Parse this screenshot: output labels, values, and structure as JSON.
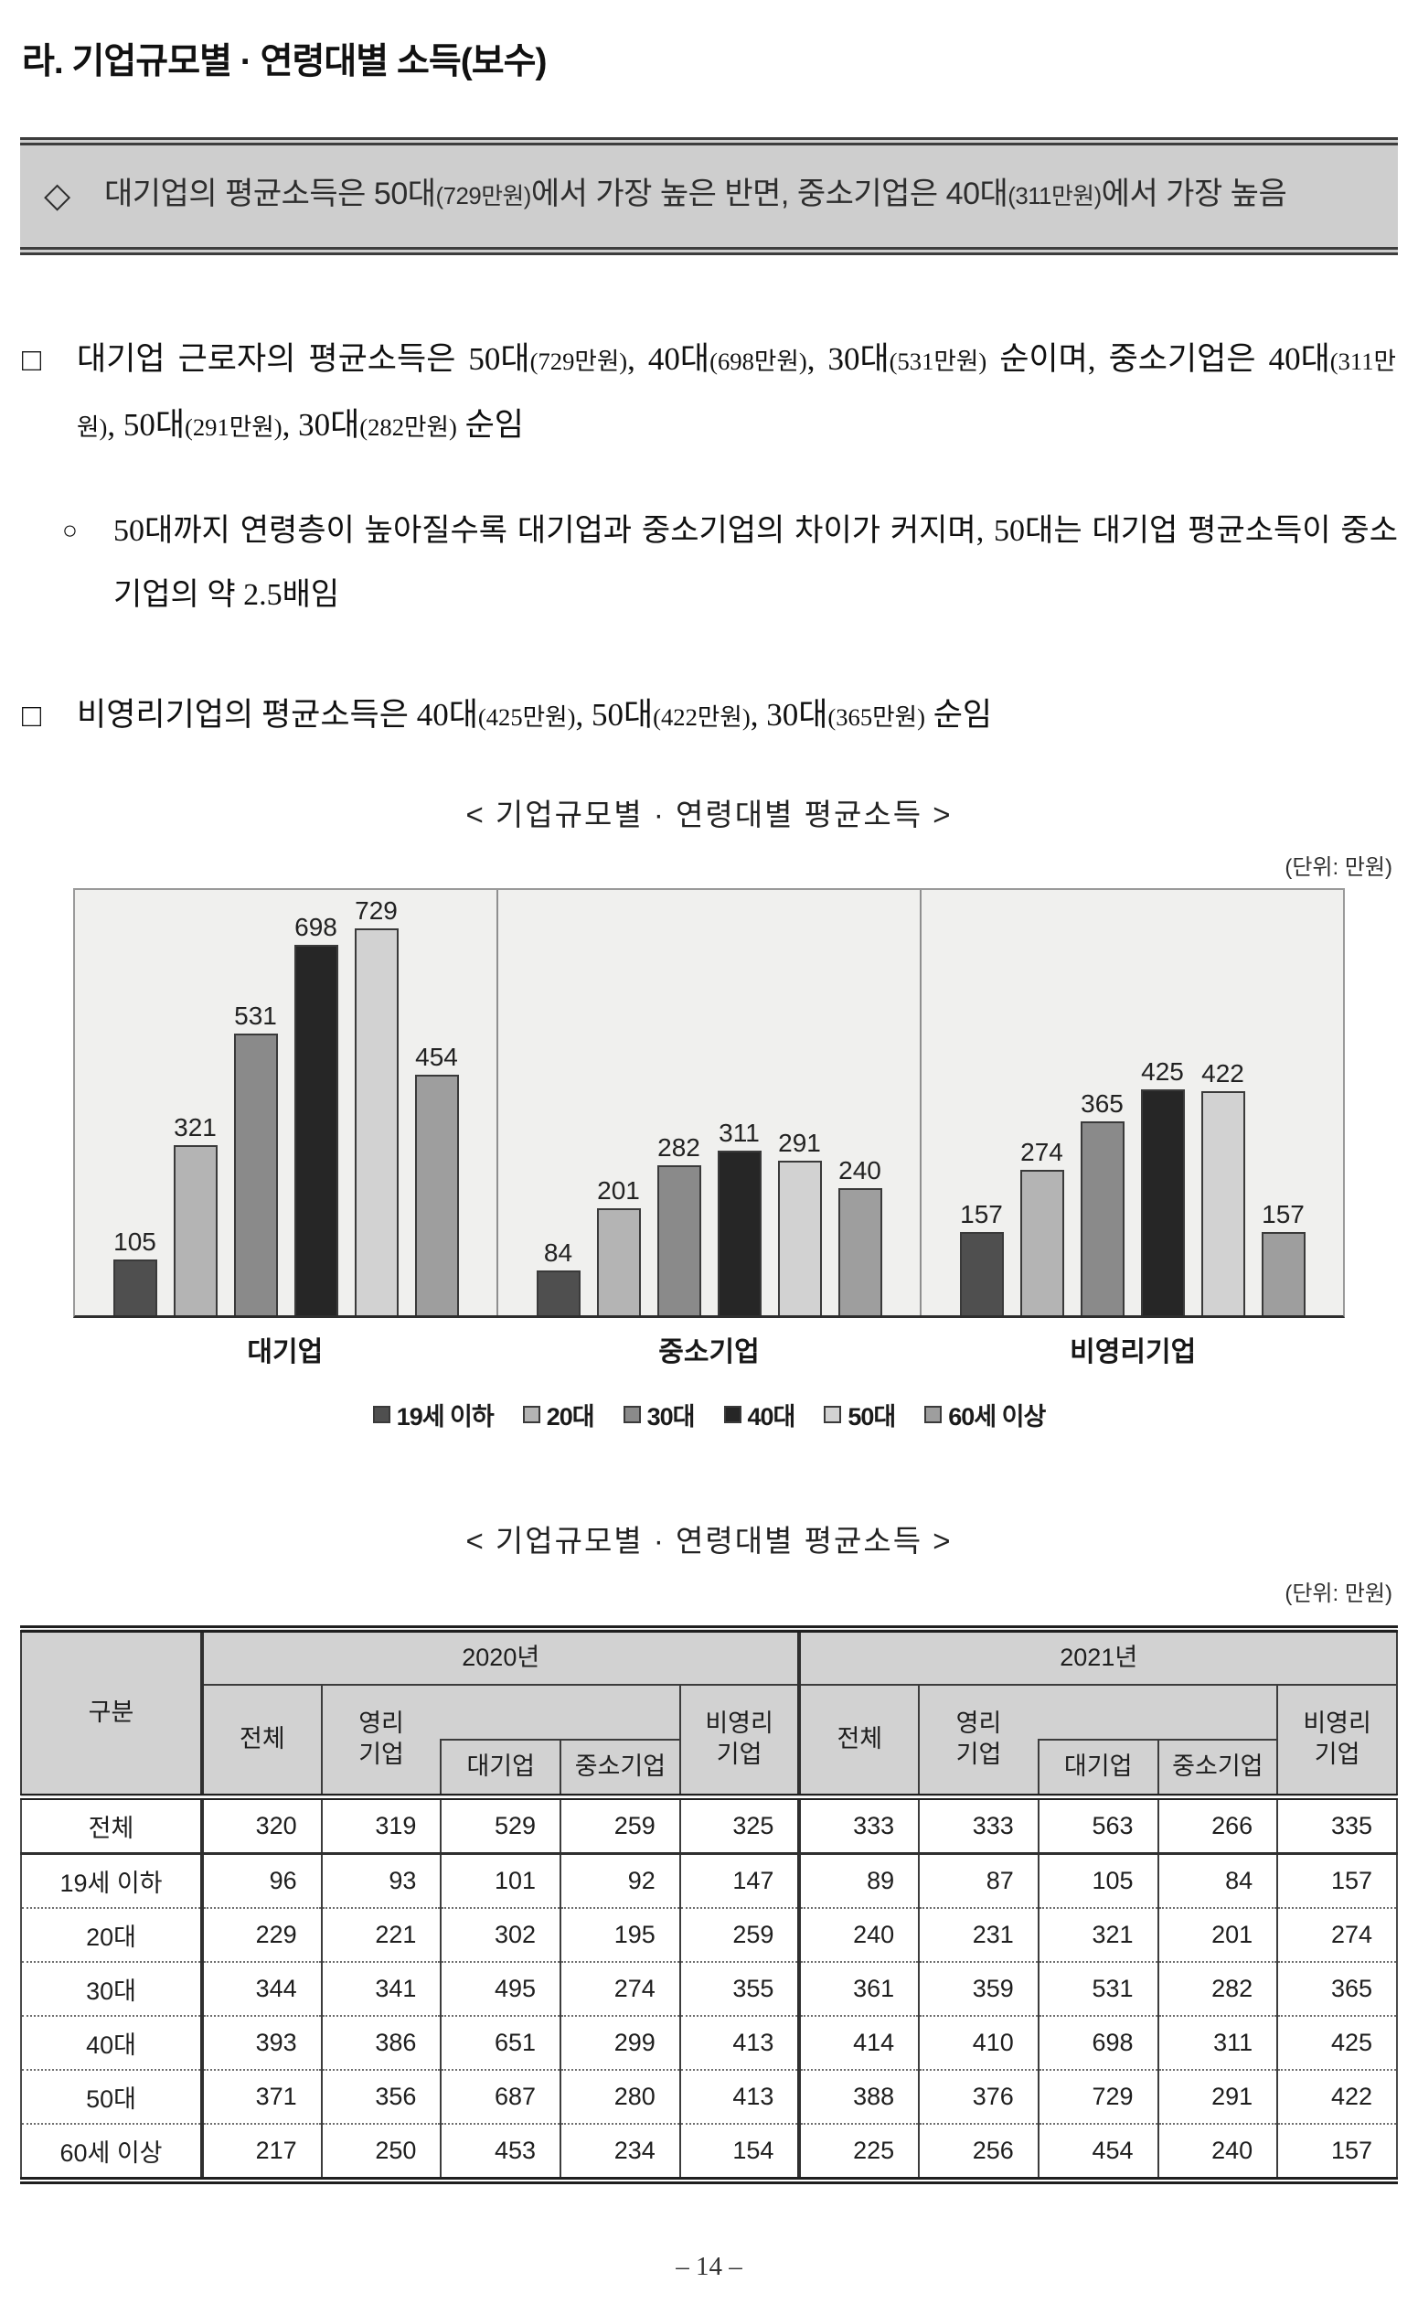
{
  "heading": {
    "title": "라. 기업규모별 · 연령대별 소득(보수)"
  },
  "summary_box": {
    "bullet": "◇",
    "segments": [
      {
        "text": "대기업의 평균소득은 50대"
      },
      {
        "text": "(729만원)",
        "small": true
      },
      {
        "text": "에서 가장 높은 반면, 중소기업은 40대"
      },
      {
        "text": "(311만원)",
        "small": true
      },
      {
        "text": "에서 가장 높음"
      }
    ]
  },
  "paragraphs": [
    {
      "bullet": "□",
      "style": "main",
      "segments": [
        {
          "text": "대기업 근로자의 평균소득은 50대"
        },
        {
          "text": "(729만원)",
          "small": true
        },
        {
          "text": ", 40대"
        },
        {
          "text": "(698만원)",
          "small": true
        },
        {
          "text": ", 30대"
        },
        {
          "text": "(531만원)",
          "small": true
        },
        {
          "text": " 순이며, 중소기업은 40대"
        },
        {
          "text": "(311만원)",
          "small": true
        },
        {
          "text": ", 50대"
        },
        {
          "text": "(291만원)",
          "small": true
        },
        {
          "text": ", 30대"
        },
        {
          "text": "(282만원)",
          "small": true
        },
        {
          "text": " 순임"
        }
      ]
    },
    {
      "bullet": "○",
      "style": "sub",
      "segments": [
        {
          "text": "50대까지 연령층이 높아질수록 대기업과 중소기업의 차이가 커지며, 50대는 대기업 평균소득이 중소기업의 약 2.5배임"
        }
      ]
    },
    {
      "bullet": "□",
      "style": "main",
      "segments": [
        {
          "text": "비영리기업의 평균소득은 40대"
        },
        {
          "text": "(425만원)",
          "small": true
        },
        {
          "text": ", 50대"
        },
        {
          "text": "(422만원)",
          "small": true
        },
        {
          "text": ", 30대"
        },
        {
          "text": "(365만원)",
          "small": true
        },
        {
          "text": " 순임"
        }
      ]
    }
  ],
  "chart": {
    "title": "< 기업규모별 · 연령대별 평균소득 >",
    "unit": "(단위: 만원)"
  },
  "chart_data": {
    "type": "bar",
    "title": "< 기업규모별 · 연령대별 평균소득 >",
    "unit": "(단위: 만원)",
    "categories": [
      "대기업",
      "중소기업",
      "비영리기업"
    ],
    "series": [
      {
        "name": "19세 이하",
        "color": "#4f4f4f",
        "values": [
          105,
          84,
          157
        ]
      },
      {
        "name": "20대",
        "color": "#b4b4b4",
        "values": [
          321,
          201,
          274
        ]
      },
      {
        "name": "30대",
        "color": "#8a8a8a",
        "values": [
          531,
          282,
          365
        ]
      },
      {
        "name": "40대",
        "color": "#262626",
        "values": [
          698,
          311,
          425
        ]
      },
      {
        "name": "50대",
        "color": "#d2d2d2",
        "values": [
          729,
          291,
          422
        ]
      },
      {
        "name": "60세 이상",
        "color": "#9e9e9e",
        "values": [
          454,
          240,
          157
        ]
      }
    ],
    "ylim": [
      0,
      800
    ],
    "grid": false,
    "legend_position": "bottom",
    "value_labels": true,
    "plot_background": "#f0f0ee"
  },
  "table": {
    "title": "< 기업규모별 · 연령대별 평균소득 >",
    "unit": "(단위: 만원)",
    "corner": "구분",
    "years": [
      "2020년",
      "2021년"
    ],
    "sub": {
      "total": "전체",
      "profit": "영리\n기업",
      "large": "대기업",
      "sme": "중소기업",
      "nonprofit": "비영리\n기업"
    },
    "rows": [
      {
        "label": "전체",
        "values": [
          320,
          319,
          529,
          259,
          325,
          333,
          333,
          563,
          266,
          335
        ]
      },
      {
        "label": "19세 이하",
        "values": [
          96,
          93,
          101,
          92,
          147,
          89,
          87,
          105,
          84,
          157
        ]
      },
      {
        "label": "20대",
        "values": [
          229,
          221,
          302,
          195,
          259,
          240,
          231,
          321,
          201,
          274
        ]
      },
      {
        "label": "30대",
        "values": [
          344,
          341,
          495,
          274,
          355,
          361,
          359,
          531,
          282,
          365
        ]
      },
      {
        "label": "40대",
        "values": [
          393,
          386,
          651,
          299,
          413,
          414,
          410,
          698,
          311,
          425
        ]
      },
      {
        "label": "50대",
        "values": [
          371,
          356,
          687,
          280,
          413,
          388,
          376,
          729,
          291,
          422
        ]
      },
      {
        "label": "60세 이상",
        "values": [
          217,
          250,
          453,
          234,
          154,
          225,
          256,
          454,
          240,
          157
        ]
      }
    ]
  },
  "page": {
    "number_label": "– 14 –"
  }
}
